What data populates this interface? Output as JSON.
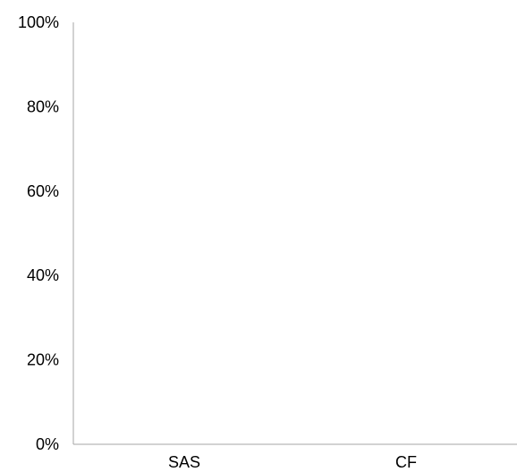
{
  "chart_data": {
    "type": "bar",
    "categories": [
      "SAS",
      "CF"
    ],
    "series": [
      {
        "values": [
          0,
          0
        ]
      }
    ],
    "ylim": [
      0,
      1
    ],
    "yticks": [
      "0%",
      "20%",
      "40%",
      "60%",
      "80%",
      "100%"
    ],
    "grid": false,
    "colors": {
      "axis": "#a6a6a6",
      "text": "#000000"
    }
  }
}
